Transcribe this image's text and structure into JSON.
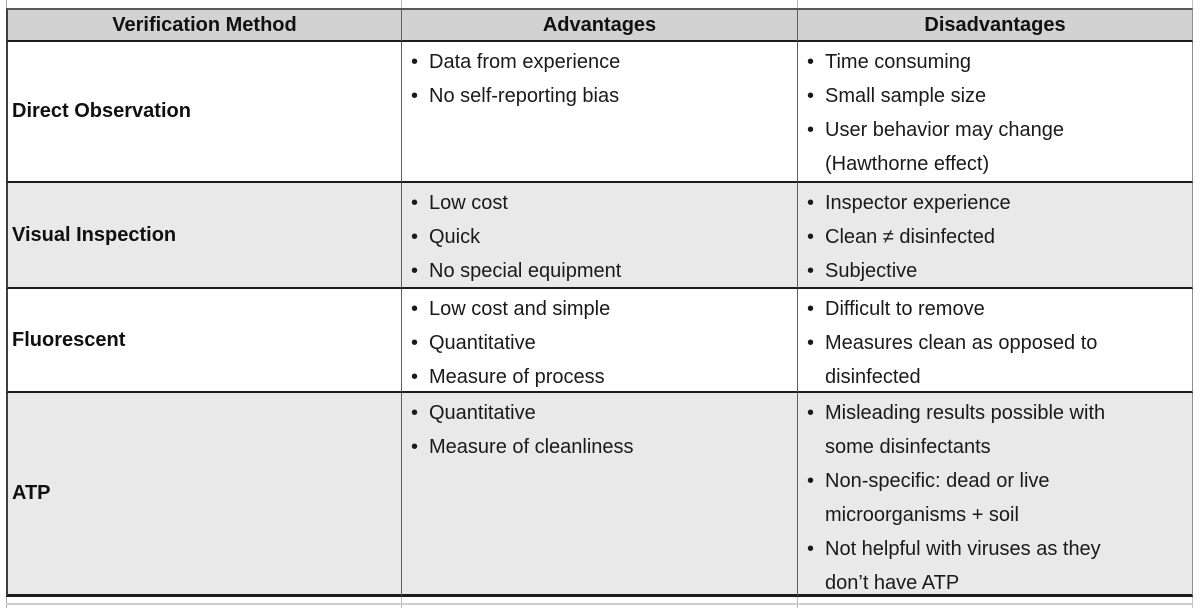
{
  "ui": {
    "bullet": "•"
  },
  "colors": {
    "header_bg": "#d2d2d2",
    "stripe_bg": "#e9e9e9",
    "row_bg": "#ffffff",
    "grid_dark": "#1d1d1d",
    "grid_gray": "#5f5f5f"
  },
  "table": {
    "headers": [
      "Verification Method",
      "Advantages",
      "Disadvantages"
    ],
    "rows": [
      {
        "method": "Direct Observation",
        "advantages": [
          "Data from experience",
          "No self-reporting bias"
        ],
        "disadvantages": [
          "Time consuming",
          "Small sample size",
          "User behavior may change\n(Hawthorne effect)"
        ]
      },
      {
        "method": "Visual Inspection",
        "advantages": [
          "Low cost",
          "Quick",
          "No special equipment"
        ],
        "disadvantages": [
          "Inspector experience",
          "Clean ≠ disinfected",
          "Subjective"
        ]
      },
      {
        "method": "Fluorescent",
        "advantages": [
          "Low cost and simple",
          "Quantitative",
          "Measure of process"
        ],
        "disadvantages": [
          "Difficult to remove",
          "Measures clean as opposed to\ndisinfected"
        ]
      },
      {
        "method": "ATP",
        "advantages": [
          "Quantitative",
          "Measure of cleanliness"
        ],
        "disadvantages": [
          "Misleading results possible with\nsome disinfectants",
          "Non-specific: dead or live\nmicroorganisms + soil",
          "Not helpful with viruses as they\ndon’t have ATP"
        ]
      }
    ]
  }
}
